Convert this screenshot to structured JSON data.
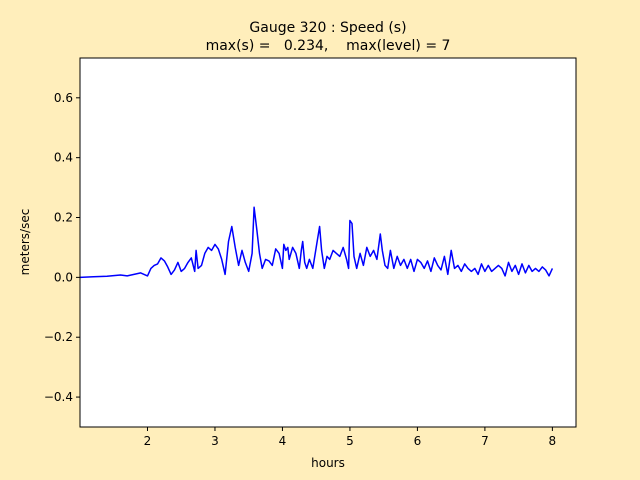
{
  "colors": {
    "figure_bg": "#ffeebb",
    "axes_bg": "#ffffff",
    "line": "#0000ff"
  },
  "chart_data": {
    "type": "line",
    "title": [
      "Gauge 320 : Speed (s)",
      "max(s) =   0.234,    max(level) = 7"
    ],
    "xlabel": "hours",
    "ylabel": "meters/sec",
    "xlim": [
      1.0,
      8.35
    ],
    "ylim": [
      -0.5,
      0.733
    ],
    "xticks": [
      2,
      3,
      4,
      5,
      6,
      7,
      8
    ],
    "yticks": [
      -0.4,
      -0.2,
      0.0,
      0.2,
      0.4,
      0.6
    ],
    "ytick_labels": [
      "−0.4",
      "−0.2",
      "0.0",
      "0.2",
      "0.4",
      "0.6"
    ],
    "grid": false,
    "series": [
      {
        "values_x": [
          1.0,
          1.2,
          1.4,
          1.5,
          1.6,
          1.7,
          1.8,
          1.9,
          2.0,
          2.05,
          2.1,
          2.15,
          2.2,
          2.25,
          2.3,
          2.35,
          2.4,
          2.45,
          2.5,
          2.55,
          2.6,
          2.65,
          2.7,
          2.72,
          2.75,
          2.8,
          2.85,
          2.9,
          2.95,
          3.0,
          3.05,
          3.1,
          3.15,
          3.2,
          3.25,
          3.3,
          3.35,
          3.4,
          3.45,
          3.5,
          3.55,
          3.58,
          3.62,
          3.66,
          3.7,
          3.75,
          3.8,
          3.85,
          3.9,
          3.95,
          4.0,
          4.02,
          4.05,
          4.08,
          4.1,
          4.15,
          4.2,
          4.25,
          4.28,
          4.3,
          4.33,
          4.36,
          4.4,
          4.45,
          4.5,
          4.55,
          4.58,
          4.62,
          4.66,
          4.7,
          4.75,
          4.8,
          4.85,
          4.9,
          4.95,
          4.98,
          5.0,
          5.03,
          5.06,
          5.1,
          5.15,
          5.2,
          5.25,
          5.3,
          5.35,
          5.4,
          5.45,
          5.48,
          5.52,
          5.56,
          5.6,
          5.65,
          5.7,
          5.75,
          5.8,
          5.85,
          5.9,
          5.95,
          6.0,
          6.05,
          6.1,
          6.15,
          6.2,
          6.25,
          6.3,
          6.35,
          6.4,
          6.45,
          6.5,
          6.55,
          6.6,
          6.65,
          6.7,
          6.75,
          6.8,
          6.85,
          6.9,
          6.95,
          7.0,
          7.05,
          7.1,
          7.15,
          7.2,
          7.25,
          7.3,
          7.35,
          7.4,
          7.45,
          7.5,
          7.55,
          7.6,
          7.65,
          7.7,
          7.75,
          7.8,
          7.85,
          7.9,
          7.95,
          8.0
        ],
        "values_y": [
          0.0,
          0.002,
          0.004,
          0.006,
          0.008,
          0.005,
          0.01,
          0.015,
          0.005,
          0.03,
          0.04,
          0.045,
          0.065,
          0.055,
          0.035,
          0.01,
          0.025,
          0.05,
          0.02,
          0.03,
          0.05,
          0.065,
          0.02,
          0.09,
          0.03,
          0.04,
          0.08,
          0.1,
          0.09,
          0.11,
          0.095,
          0.06,
          0.01,
          0.12,
          0.17,
          0.1,
          0.04,
          0.09,
          0.05,
          0.02,
          0.08,
          0.234,
          0.16,
          0.08,
          0.03,
          0.06,
          0.055,
          0.04,
          0.095,
          0.08,
          0.03,
          0.11,
          0.09,
          0.1,
          0.06,
          0.1,
          0.08,
          0.03,
          0.09,
          0.12,
          0.05,
          0.03,
          0.06,
          0.03,
          0.1,
          0.17,
          0.09,
          0.03,
          0.07,
          0.06,
          0.09,
          0.08,
          0.07,
          0.1,
          0.06,
          0.03,
          0.19,
          0.18,
          0.07,
          0.03,
          0.08,
          0.04,
          0.1,
          0.07,
          0.09,
          0.06,
          0.145,
          0.09,
          0.04,
          0.03,
          0.09,
          0.03,
          0.07,
          0.04,
          0.06,
          0.03,
          0.06,
          0.02,
          0.06,
          0.05,
          0.03,
          0.055,
          0.02,
          0.065,
          0.04,
          0.025,
          0.07,
          0.01,
          0.09,
          0.03,
          0.04,
          0.02,
          0.045,
          0.03,
          0.02,
          0.03,
          0.01,
          0.045,
          0.02,
          0.04,
          0.02,
          0.03,
          0.04,
          0.03,
          0.005,
          0.05,
          0.02,
          0.04,
          0.01,
          0.045,
          0.015,
          0.04,
          0.02,
          0.03,
          0.02,
          0.035,
          0.025,
          0.005,
          0.03
        ]
      }
    ]
  }
}
